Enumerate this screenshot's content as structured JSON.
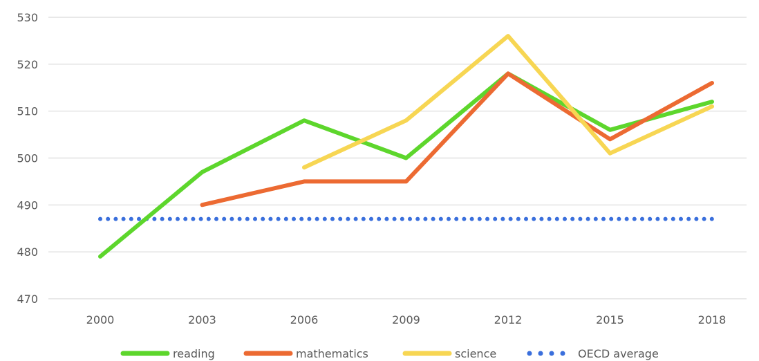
{
  "chart_data": {
    "type": "line",
    "title_partial": "",
    "categories": [
      "2000",
      "2003",
      "2006",
      "2009",
      "2012",
      "2015",
      "2018"
    ],
    "ylim": [
      470,
      530
    ],
    "yticks": [
      470,
      480,
      490,
      500,
      510,
      520,
      530
    ],
    "grid": "horizontal",
    "legend_position": "bottom",
    "series": [
      {
        "name": "reading",
        "color": "#5dd62c",
        "style": "solid",
        "values": [
          479,
          497,
          508,
          500,
          518,
          506,
          512
        ]
      },
      {
        "name": "mathematics",
        "color": "#ec6a32",
        "style": "solid",
        "values": [
          null,
          490,
          495,
          495,
          518,
          504,
          516
        ]
      },
      {
        "name": "science",
        "color": "#f7d653",
        "style": "solid",
        "values": [
          null,
          null,
          498,
          508,
          526,
          501,
          511
        ]
      },
      {
        "name": "OECD average",
        "color": "#3a6fdc",
        "style": "dotted",
        "values": [
          487,
          487,
          487,
          487,
          487,
          487,
          487
        ]
      }
    ]
  }
}
